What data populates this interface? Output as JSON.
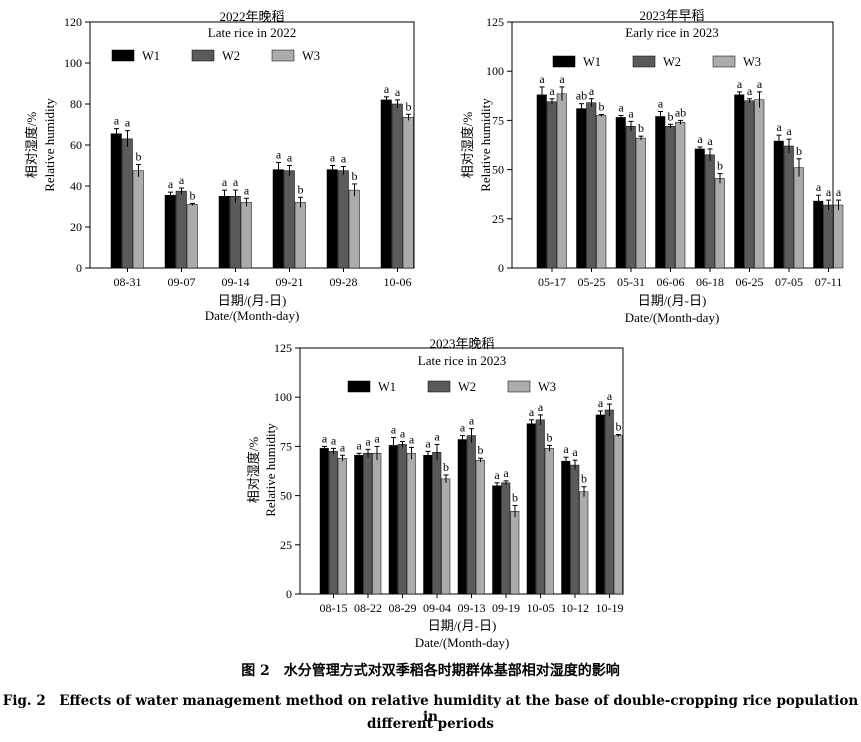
{
  "caption": {
    "zh": "图 2　水分管理方式对双季稻各时期群体基部相对湿度的影响",
    "en_line1": "Fig. 2　Effects of water management method on relative humidity at the base of double-cropping rice population in",
    "en_line2": "different periods"
  },
  "colors": {
    "W1": "#000000",
    "W2": "#5a5a5a",
    "W3": "#ababab"
  },
  "chart_data": [
    {
      "type": "bar",
      "title": "2022年晚稻",
      "subtitle": "Late rice in 2022",
      "ylabel": "相对湿度/%",
      "ylabel_en": "Relative humidity",
      "xlabel": "日期/(月-日)",
      "xlabel_en": "Date/(Month-day)",
      "ylim": [
        0,
        120
      ],
      "yticks": [
        0,
        20,
        40,
        60,
        80,
        100,
        120
      ],
      "legend": "top",
      "categories": [
        "08-31",
        "09-07",
        "09-14",
        "09-21",
        "09-28",
        "10-06"
      ],
      "series": [
        {
          "name": "W1",
          "values": [
            65.5,
            35.5,
            35,
            48,
            48,
            82
          ],
          "errors": [
            2.5,
            1.5,
            3,
            3.5,
            2,
            1.5
          ],
          "labels": [
            "a",
            "a",
            "a",
            "a",
            "a",
            "a"
          ]
        },
        {
          "name": "W2",
          "values": [
            63,
            37.5,
            35,
            47.5,
            47.5,
            80
          ],
          "errors": [
            4,
            1.5,
            3,
            2.5,
            2,
            2
          ],
          "labels": [
            "a",
            "a",
            "a",
            "a",
            "a",
            "a"
          ]
        },
        {
          "name": "W3",
          "values": [
            47.5,
            31,
            32,
            32,
            38,
            73.5
          ],
          "errors": [
            3,
            0.5,
            2,
            2.5,
            3,
            1.5
          ],
          "labels": [
            "b",
            "b",
            "a",
            "b",
            "b",
            "b"
          ]
        }
      ]
    },
    {
      "type": "bar",
      "title": "2023年早稻",
      "subtitle": "Early rice in 2023",
      "ylabel": "相对湿度/%",
      "ylabel_en": "Relative humidity",
      "xlabel": "日期/(月-日)",
      "xlabel_en": "Date/(Month-day)",
      "ylim": [
        0,
        125
      ],
      "yticks": [
        0,
        25,
        50,
        75,
        100,
        125
      ],
      "legend": "top",
      "categories": [
        "05-17",
        "05-25",
        "05-31",
        "06-06",
        "06-18",
        "06-25",
        "07-05",
        "07-11"
      ],
      "series": [
        {
          "name": "W1",
          "values": [
            88,
            81,
            76.5,
            77,
            60.5,
            88,
            64.5,
            34
          ],
          "errors": [
            4,
            2.5,
            1,
            2.5,
            1,
            1.5,
            3,
            3
          ],
          "labels": [
            "a",
            "ab",
            "a",
            "a",
            "a",
            "a",
            "a",
            "a"
          ]
        },
        {
          "name": "W2",
          "values": [
            84.5,
            84,
            72,
            72,
            57.5,
            85,
            62,
            32
          ],
          "errors": [
            1.5,
            2,
            2.5,
            1,
            3,
            1,
            3.5,
            2.5
          ],
          "labels": [
            "a",
            "a",
            "a",
            "b",
            "a",
            "a",
            "a",
            "a"
          ]
        },
        {
          "name": "W3",
          "values": [
            88.5,
            77.5,
            66,
            74,
            45.5,
            85.5,
            51,
            32
          ],
          "errors": [
            3.5,
            0.5,
            1,
            1,
            2.5,
            4,
            4.5,
            2.5
          ],
          "labels": [
            "a",
            "b",
            "b",
            "ab",
            "b",
            "a",
            "b",
            "a"
          ]
        }
      ]
    },
    {
      "type": "bar",
      "title": "2023年晚稻",
      "subtitle": "Late rice in 2023",
      "ylabel": "相对湿度/%",
      "ylabel_en": "Relative humidity",
      "xlabel": "日期/(月-日)",
      "xlabel_en": "Date/(Month-day)",
      "ylim": [
        0,
        125
      ],
      "yticks": [
        0,
        25,
        50,
        75,
        100,
        125
      ],
      "legend": "top",
      "categories": [
        "08-15",
        "08-22",
        "08-29",
        "09-04",
        "09-13",
        "09-19",
        "10-05",
        "10-12",
        "10-19"
      ],
      "series": [
        {
          "name": "W1",
          "values": [
            74,
            70.5,
            75.5,
            70.5,
            78.5,
            55,
            86.5,
            67.5,
            91
          ],
          "errors": [
            1,
            1,
            4,
            2,
            2,
            1.5,
            2,
            2,
            2
          ],
          "labels": [
            "a",
            "a",
            "a",
            "a",
            "a",
            "a",
            "a",
            "a",
            "a"
          ]
        },
        {
          "name": "W2",
          "values": [
            72.5,
            71.5,
            76,
            72,
            80.5,
            56.5,
            88.5,
            65.5,
            93.5
          ],
          "errors": [
            1.5,
            2,
            1.5,
            4,
            3.5,
            1,
            2.5,
            2.5,
            3
          ],
          "labels": [
            "a",
            "a",
            "a",
            "a",
            "a",
            "a",
            "a",
            "a",
            "a"
          ]
        },
        {
          "name": "W3",
          "values": [
            69,
            71.5,
            71.5,
            58.5,
            68,
            42,
            74,
            52,
            80.5
          ],
          "errors": [
            1.5,
            3.5,
            3,
            2,
            1,
            3,
            1.5,
            2.5,
            0.5
          ],
          "labels": [
            "a",
            "a",
            "a",
            "b",
            "b",
            "b",
            "b",
            "b",
            "b"
          ]
        }
      ]
    }
  ]
}
